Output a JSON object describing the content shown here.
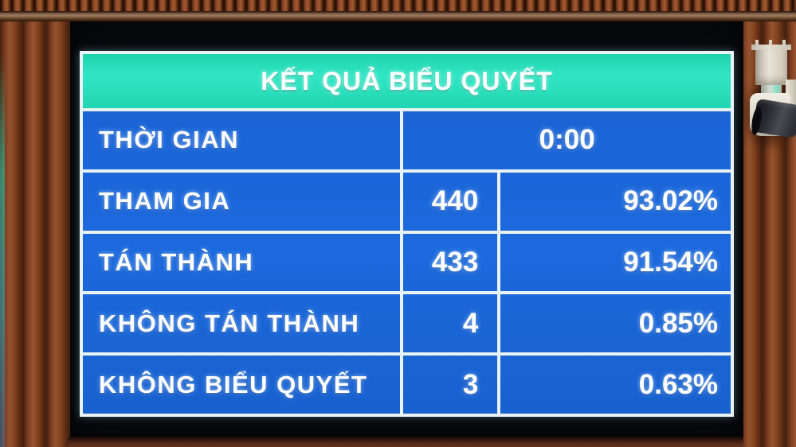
{
  "screen": {
    "title": "KẾT QUẢ BIỂU QUYẾT",
    "rows": [
      {
        "label": "THỜI GIAN",
        "value": "0:00"
      },
      {
        "label": "THAM GIA",
        "count": "440",
        "percent": "93.02%"
      },
      {
        "label": "TÁN THÀNH",
        "count": "433",
        "percent": "91.54%"
      },
      {
        "label": "KHÔNG TÁN THÀNH",
        "count": "4",
        "percent": "0.85%"
      },
      {
        "label": "KHÔNG BIỂU QUYẾT",
        "count": "3",
        "percent": "0.63%"
      }
    ],
    "colors": {
      "header_bg": "#27dfbc",
      "table_bg": "#1b66d8",
      "grid_line": "#e9f2f5",
      "text": "#ffffff",
      "bezel": "#090a0e",
      "wood": "#7b3c20"
    }
  },
  "chart_data": {
    "type": "table",
    "title": "KẾT QUẢ BIỂU QUYẾT",
    "columns": [
      "label",
      "count",
      "percent"
    ],
    "rows": [
      [
        "THỜI GIAN",
        "0:00",
        ""
      ],
      [
        "THAM GIA",
        "440",
        "93.02%"
      ],
      [
        "TÁN THÀNH",
        "433",
        "91.54%"
      ],
      [
        "KHÔNG TÁN THÀNH",
        "4",
        "0.85%"
      ],
      [
        "KHÔNG BIỂU QUYẾT",
        "3",
        "0.63%"
      ]
    ]
  }
}
